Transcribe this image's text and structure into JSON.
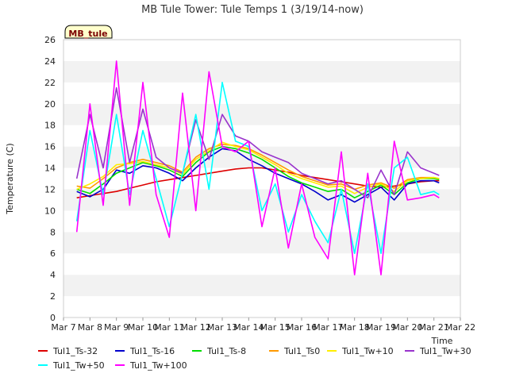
{
  "chart_data": {
    "type": "line",
    "title": "MB Tule Tower: Tule Temps 1 (3/19/14-now)",
    "xlabel": "Time",
    "ylabel": "Temperature (C)",
    "badge": "MB_tule",
    "xlim": [
      7,
      22
    ],
    "ylim": [
      0,
      26
    ],
    "x_ticks": [
      7,
      8,
      9,
      10,
      11,
      12,
      13,
      14,
      15,
      16,
      17,
      18,
      19,
      20,
      21,
      22
    ],
    "x_tick_labels": [
      "Mar 7",
      "Mar 8",
      "Mar 9",
      "Mar 10",
      "Mar 11",
      "Mar 12",
      "Mar 13",
      "Mar 14",
      "Mar 15",
      "Mar 16",
      "Mar 17",
      "Mar 18",
      "Mar 19",
      "Mar 20",
      "Mar 21",
      "Mar 22"
    ],
    "y_ticks": [
      0,
      2,
      4,
      6,
      8,
      10,
      12,
      14,
      16,
      18,
      20,
      22,
      24,
      26
    ],
    "grid": "horizontal bands",
    "legend_position": "bottom",
    "x_day_of_march": [
      7.5,
      8.0,
      8.5,
      9.0,
      9.5,
      10.0,
      10.5,
      11.0,
      11.5,
      12.0,
      12.5,
      13.0,
      13.5,
      14.0,
      14.5,
      15.0,
      15.5,
      16.0,
      16.5,
      17.0,
      17.5,
      18.0,
      18.5,
      19.0,
      19.5,
      20.0,
      20.5,
      21.0,
      21.2
    ],
    "series": [
      {
        "name": "Tul1_Ts-32",
        "color": "#dd0000",
        "values": [
          11.2,
          11.4,
          11.6,
          11.8,
          12.1,
          12.4,
          12.7,
          12.9,
          13.1,
          13.3,
          13.5,
          13.7,
          13.9,
          14.0,
          14.0,
          13.8,
          13.6,
          13.3,
          13.1,
          12.9,
          12.7,
          12.5,
          12.3,
          12.2,
          12.3,
          12.5,
          12.7,
          12.8,
          12.8
        ]
      },
      {
        "name": "Tul1_Ts-16",
        "color": "#0000cc",
        "values": [
          11.8,
          11.3,
          12.0,
          13.8,
          13.5,
          14.2,
          14.0,
          13.5,
          12.8,
          14.0,
          15.0,
          15.8,
          15.6,
          14.8,
          14.2,
          13.5,
          13.0,
          12.5,
          11.8,
          11.0,
          11.5,
          10.8,
          11.5,
          12.2,
          11.0,
          12.5,
          12.8,
          12.8,
          12.6
        ]
      },
      {
        "name": "Tul1_Ts-8",
        "color": "#00dd00",
        "values": [
          12.0,
          11.6,
          12.5,
          13.5,
          14.0,
          14.5,
          14.2,
          13.8,
          13.2,
          14.5,
          15.5,
          16.0,
          15.8,
          15.4,
          14.8,
          14.0,
          13.2,
          12.6,
          12.2,
          11.8,
          12.0,
          11.2,
          11.8,
          12.4,
          11.5,
          12.6,
          13.0,
          13.0,
          12.9
        ]
      },
      {
        "name": "Tul1_Ts0",
        "color": "#ff9900",
        "values": [
          12.3,
          12.1,
          13.0,
          14.0,
          14.5,
          14.8,
          14.5,
          14.2,
          13.6,
          15.0,
          15.8,
          16.2,
          16.1,
          15.8,
          15.2,
          14.5,
          13.8,
          13.2,
          12.8,
          12.4,
          12.5,
          12.0,
          12.4,
          12.6,
          12.1,
          12.9,
          13.1,
          13.1,
          13.0
        ]
      },
      {
        "name": "Tul1_Tw+10",
        "color": "#ffee00",
        "values": [
          12.0,
          12.5,
          13.2,
          14.3,
          14.4,
          14.6,
          14.3,
          14.0,
          13.4,
          14.8,
          15.6,
          16.4,
          16.0,
          15.7,
          15.0,
          14.3,
          13.5,
          13.0,
          12.6,
          12.2,
          12.3,
          11.6,
          12.2,
          12.5,
          11.8,
          12.8,
          13.0,
          13.1,
          13.0
        ]
      },
      {
        "name": "Tul1_Tw+30",
        "color": "#9933cc",
        "values": [
          13.0,
          19.0,
          14.0,
          21.5,
          14.5,
          19.5,
          15.0,
          14.0,
          13.5,
          18.5,
          14.8,
          19.0,
          17.0,
          16.5,
          15.5,
          15.0,
          14.5,
          13.5,
          13.0,
          12.5,
          12.8,
          12.0,
          11.2,
          13.8,
          11.5,
          15.5,
          14.0,
          13.5,
          13.3
        ]
      },
      {
        "name": "Tul1_Tw+50",
        "color": "#00ffff",
        "values": [
          9.0,
          17.5,
          11.5,
          19.0,
          11.5,
          17.5,
          13.0,
          8.5,
          13.5,
          19.0,
          12.0,
          22.0,
          16.5,
          16.0,
          10.0,
          12.5,
          8.0,
          11.5,
          9.0,
          7.0,
          12.0,
          6.0,
          12.5,
          6.0,
          14.0,
          15.0,
          11.5,
          11.8,
          11.5
        ]
      },
      {
        "name": "Tul1_Tw+100",
        "color": "#ff00ff",
        "values": [
          8.0,
          20.0,
          10.5,
          24.0,
          10.5,
          22.0,
          11.5,
          7.5,
          21.0,
          10.0,
          23.0,
          16.0,
          15.5,
          16.5,
          8.5,
          14.0,
          6.5,
          12.5,
          7.5,
          5.5,
          15.5,
          4.0,
          13.5,
          4.0,
          16.5,
          11.0,
          11.2,
          11.5,
          11.2
        ]
      }
    ]
  }
}
